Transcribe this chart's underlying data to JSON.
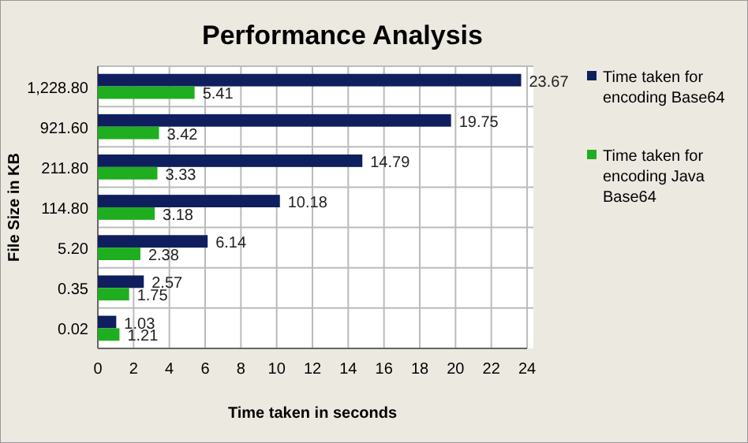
{
  "chart_data": {
    "type": "bar",
    "orientation": "horizontal",
    "title": "Performance Analysis",
    "xlabel": "Time taken in seconds",
    "ylabel": "File Size  in KB",
    "categories": [
      "1,228.80",
      "921.60",
      "211.80",
      "114.80",
      "5.20",
      "0.35",
      "0.02"
    ],
    "series": [
      {
        "name": "Time taken for encoding Base64",
        "color": "#0f1f5e",
        "values": [
          23.67,
          19.75,
          14.79,
          10.18,
          6.14,
          2.57,
          1.03
        ]
      },
      {
        "name": "Time taken for encoding Java Base64",
        "color": "#1fae1f",
        "values": [
          5.41,
          3.42,
          3.33,
          3.18,
          2.38,
          1.75,
          1.21
        ]
      }
    ],
    "xlim": [
      0,
      24
    ],
    "xticks": [
      0,
      2,
      4,
      6,
      8,
      10,
      12,
      14,
      16,
      18,
      20,
      22,
      24
    ],
    "grid": true,
    "legend": "right",
    "data_labels": true
  }
}
